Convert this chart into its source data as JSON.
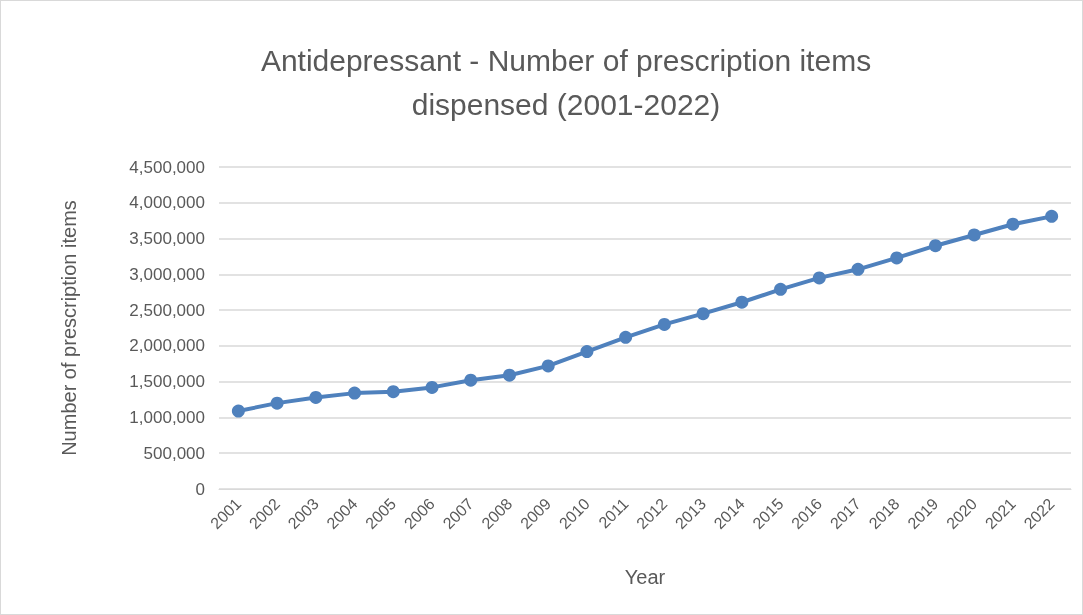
{
  "chart_data": {
    "type": "line",
    "title": "Antidepressant - Number of prescription items\ndispensed (2001-2022)",
    "xlabel": "Year",
    "ylabel": "Number of prescription items",
    "categories": [
      "2001",
      "2002",
      "2003",
      "2004",
      "2005",
      "2006",
      "2007",
      "2008",
      "2009",
      "2010",
      "2011",
      "2012",
      "2013",
      "2014",
      "2015",
      "2016",
      "2017",
      "2018",
      "2019",
      "2020",
      "2021",
      "2022"
    ],
    "series": [
      {
        "color": "#4f81bd",
        "values": [
          1090000,
          1200000,
          1280000,
          1340000,
          1360000,
          1420000,
          1520000,
          1590000,
          1720000,
          1920000,
          2120000,
          2300000,
          2450000,
          2610000,
          2790000,
          2950000,
          3070000,
          3230000,
          3400000,
          3550000,
          3700000,
          3810000
        ]
      }
    ],
    "ylim": [
      0,
      4500000
    ],
    "yticks": [
      0,
      {
        "value": 500000,
        "label": "500,000"
      },
      {
        "value": 1000000,
        "label": "1,000,000"
      },
      {
        "value": 1500000,
        "label": "1,500,000"
      },
      {
        "value": 2000000,
        "label": "2,000,000"
      },
      {
        "value": 2500000,
        "label": "2,500,000"
      },
      {
        "value": 3000000,
        "label": "3,000,000"
      },
      {
        "value": 3500000,
        "label": "3,500,000"
      },
      {
        "value": 4000000,
        "label": "4,000,000"
      },
      {
        "value": 4500000,
        "label": "4,500,000"
      }
    ],
    "grid": "y",
    "marker": "circle",
    "line_style": "solid"
  }
}
